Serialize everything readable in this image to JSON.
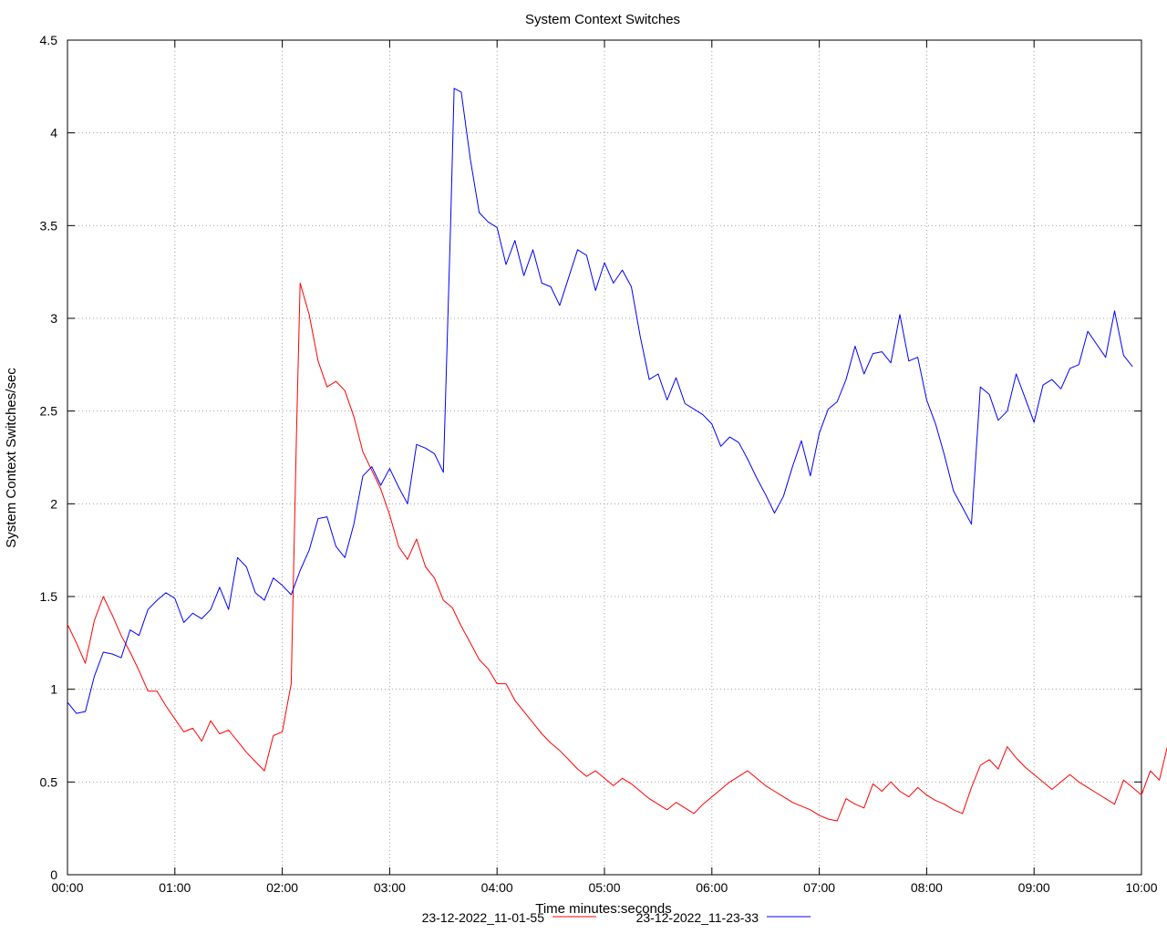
{
  "chart_data": {
    "type": "line",
    "title": "System Context Switches",
    "xlabel": "Time minutes:seconds",
    "ylabel": "System Context Switches/sec",
    "xlim": [
      0,
      600
    ],
    "ylim": [
      0,
      4.5
    ],
    "x_ticks": [
      "00:00",
      "01:00",
      "02:00",
      "03:00",
      "04:00",
      "05:00",
      "06:00",
      "07:00",
      "08:00",
      "09:00",
      "10:00"
    ],
    "y_ticks": [
      "0",
      "0.5",
      "1",
      "1.5",
      "2",
      "2.5",
      "3",
      "3.5",
      "4",
      "4.5"
    ],
    "grid": true,
    "legend_position": "bottom",
    "series": [
      {
        "name": "23-12-2022_11-01-55",
        "color": "#ff0000",
        "points": [
          [
            0,
            1.35
          ],
          [
            5,
            1.25
          ],
          [
            10,
            1.14
          ],
          [
            15,
            1.37
          ],
          [
            20,
            1.5
          ],
          [
            25,
            1.4
          ],
          [
            30,
            1.29
          ],
          [
            35,
            1.2
          ],
          [
            40,
            1.1
          ],
          [
            45,
            0.99
          ],
          [
            50,
            0.99
          ],
          [
            55,
            0.91
          ],
          [
            60,
            0.84
          ],
          [
            65,
            0.77
          ],
          [
            70,
            0.79
          ],
          [
            75,
            0.72
          ],
          [
            80,
            0.83
          ],
          [
            85,
            0.76
          ],
          [
            90,
            0.78
          ],
          [
            95,
            0.72
          ],
          [
            100,
            0.66
          ],
          [
            105,
            0.61
          ],
          [
            110,
            0.56
          ],
          [
            115,
            0.75
          ],
          [
            120,
            0.77
          ],
          [
            125,
            1.03
          ],
          [
            128,
            2.4
          ],
          [
            130,
            3.19
          ],
          [
            135,
            3.02
          ],
          [
            140,
            2.77
          ],
          [
            145,
            2.63
          ],
          [
            150,
            2.66
          ],
          [
            155,
            2.61
          ],
          [
            160,
            2.47
          ],
          [
            165,
            2.28
          ],
          [
            170,
            2.18
          ],
          [
            175,
            2.08
          ],
          [
            180,
            1.94
          ],
          [
            185,
            1.77
          ],
          [
            190,
            1.7
          ],
          [
            195,
            1.81
          ],
          [
            200,
            1.66
          ],
          [
            205,
            1.6
          ],
          [
            210,
            1.48
          ],
          [
            215,
            1.44
          ],
          [
            220,
            1.34
          ],
          [
            225,
            1.25
          ],
          [
            230,
            1.16
          ],
          [
            235,
            1.11
          ],
          [
            240,
            1.03
          ],
          [
            245,
            1.03
          ],
          [
            250,
            0.94
          ],
          [
            255,
            0.88
          ],
          [
            260,
            0.82
          ],
          [
            265,
            0.76
          ],
          [
            270,
            0.71
          ],
          [
            275,
            0.67
          ],
          [
            280,
            0.62
          ],
          [
            285,
            0.57
          ],
          [
            290,
            0.53
          ],
          [
            295,
            0.56
          ],
          [
            300,
            0.52
          ],
          [
            305,
            0.48
          ],
          [
            310,
            0.52
          ],
          [
            315,
            0.49
          ],
          [
            320,
            0.45
          ],
          [
            325,
            0.41
          ],
          [
            330,
            0.38
          ],
          [
            335,
            0.35
          ],
          [
            340,
            0.39
          ],
          [
            345,
            0.36
          ],
          [
            350,
            0.33
          ],
          [
            355,
            0.38
          ],
          [
            360,
            0.42
          ],
          [
            365,
            0.46
          ],
          [
            370,
            0.5
          ],
          [
            375,
            0.53
          ],
          [
            380,
            0.56
          ],
          [
            385,
            0.52
          ],
          [
            390,
            0.48
          ],
          [
            395,
            0.45
          ],
          [
            400,
            0.42
          ],
          [
            405,
            0.39
          ],
          [
            410,
            0.37
          ],
          [
            415,
            0.35
          ],
          [
            420,
            0.32
          ],
          [
            425,
            0.3
          ],
          [
            430,
            0.29
          ],
          [
            435,
            0.41
          ],
          [
            440,
            0.38
          ],
          [
            445,
            0.36
          ],
          [
            450,
            0.49
          ],
          [
            455,
            0.45
          ],
          [
            460,
            0.5
          ],
          [
            465,
            0.45
          ],
          [
            470,
            0.42
          ],
          [
            475,
            0.47
          ],
          [
            480,
            0.43
          ],
          [
            485,
            0.4
          ],
          [
            490,
            0.38
          ],
          [
            495,
            0.35
          ],
          [
            500,
            0.33
          ],
          [
            505,
            0.47
          ],
          [
            510,
            0.59
          ],
          [
            515,
            0.62
          ],
          [
            520,
            0.57
          ],
          [
            525,
            0.69
          ],
          [
            530,
            0.63
          ],
          [
            535,
            0.58
          ],
          [
            540,
            0.54
          ],
          [
            545,
            0.5
          ],
          [
            550,
            0.46
          ],
          [
            555,
            0.5
          ],
          [
            560,
            0.54
          ],
          [
            565,
            0.5
          ],
          [
            570,
            0.47
          ],
          [
            575,
            0.44
          ],
          [
            580,
            0.41
          ],
          [
            585,
            0.38
          ],
          [
            590,
            0.51
          ],
          [
            595,
            0.47
          ],
          [
            600,
            0.43
          ],
          [
            605,
            0.56
          ],
          [
            610,
            0.51
          ],
          [
            615,
            0.71
          ],
          [
            620,
            0.67
          ],
          [
            625,
            0.62
          ],
          [
            628,
            0.59
          ]
        ]
      },
      {
        "name": "23-12-2022_11-23-33",
        "color": "#0000ff",
        "points": [
          [
            0,
            0.93
          ],
          [
            5,
            0.87
          ],
          [
            10,
            0.88
          ],
          [
            15,
            1.07
          ],
          [
            20,
            1.2
          ],
          [
            25,
            1.19
          ],
          [
            30,
            1.17
          ],
          [
            35,
            1.32
          ],
          [
            40,
            1.29
          ],
          [
            45,
            1.43
          ],
          [
            50,
            1.48
          ],
          [
            55,
            1.52
          ],
          [
            60,
            1.49
          ],
          [
            65,
            1.36
          ],
          [
            70,
            1.41
          ],
          [
            75,
            1.38
          ],
          [
            80,
            1.43
          ],
          [
            85,
            1.55
          ],
          [
            90,
            1.43
          ],
          [
            95,
            1.71
          ],
          [
            100,
            1.66
          ],
          [
            105,
            1.52
          ],
          [
            110,
            1.48
          ],
          [
            115,
            1.6
          ],
          [
            120,
            1.56
          ],
          [
            125,
            1.51
          ],
          [
            130,
            1.64
          ],
          [
            135,
            1.75
          ],
          [
            140,
            1.92
          ],
          [
            145,
            1.93
          ],
          [
            150,
            1.77
          ],
          [
            155,
            1.71
          ],
          [
            160,
            1.89
          ],
          [
            165,
            2.15
          ],
          [
            170,
            2.2
          ],
          [
            175,
            2.1
          ],
          [
            180,
            2.19
          ],
          [
            185,
            2.09
          ],
          [
            190,
            2.0
          ],
          [
            195,
            2.32
          ],
          [
            200,
            2.3
          ],
          [
            205,
            2.27
          ],
          [
            210,
            2.17
          ],
          [
            214,
            3.5
          ],
          [
            216,
            4.24
          ],
          [
            220,
            4.22
          ],
          [
            225,
            3.86
          ],
          [
            230,
            3.57
          ],
          [
            235,
            3.52
          ],
          [
            240,
            3.49
          ],
          [
            245,
            3.29
          ],
          [
            250,
            3.42
          ],
          [
            255,
            3.23
          ],
          [
            260,
            3.37
          ],
          [
            265,
            3.19
          ],
          [
            270,
            3.17
          ],
          [
            275,
            3.07
          ],
          [
            280,
            3.22
          ],
          [
            285,
            3.37
          ],
          [
            290,
            3.34
          ],
          [
            295,
            3.15
          ],
          [
            300,
            3.3
          ],
          [
            305,
            3.19
          ],
          [
            310,
            3.26
          ],
          [
            315,
            3.17
          ],
          [
            320,
            2.9
          ],
          [
            325,
            2.67
          ],
          [
            330,
            2.7
          ],
          [
            335,
            2.56
          ],
          [
            340,
            2.68
          ],
          [
            345,
            2.54
          ],
          [
            350,
            2.51
          ],
          [
            355,
            2.48
          ],
          [
            360,
            2.43
          ],
          [
            365,
            2.31
          ],
          [
            370,
            2.36
          ],
          [
            375,
            2.33
          ],
          [
            380,
            2.24
          ],
          [
            385,
            2.14
          ],
          [
            390,
            2.05
          ],
          [
            395,
            1.95
          ],
          [
            400,
            2.04
          ],
          [
            405,
            2.2
          ],
          [
            410,
            2.34
          ],
          [
            415,
            2.15
          ],
          [
            420,
            2.38
          ],
          [
            425,
            2.51
          ],
          [
            430,
            2.55
          ],
          [
            435,
            2.67
          ],
          [
            440,
            2.85
          ],
          [
            445,
            2.7
          ],
          [
            450,
            2.81
          ],
          [
            455,
            2.82
          ],
          [
            460,
            2.76
          ],
          [
            465,
            3.02
          ],
          [
            470,
            2.77
          ],
          [
            475,
            2.79
          ],
          [
            480,
            2.56
          ],
          [
            485,
            2.43
          ],
          [
            490,
            2.26
          ],
          [
            495,
            2.07
          ],
          [
            500,
            1.98
          ],
          [
            505,
            1.89
          ],
          [
            510,
            2.63
          ],
          [
            515,
            2.59
          ],
          [
            520,
            2.45
          ],
          [
            525,
            2.5
          ],
          [
            530,
            2.7
          ],
          [
            535,
            2.57
          ],
          [
            540,
            2.44
          ],
          [
            545,
            2.64
          ],
          [
            550,
            2.67
          ],
          [
            555,
            2.62
          ],
          [
            560,
            2.73
          ],
          [
            565,
            2.75
          ],
          [
            570,
            2.93
          ],
          [
            575,
            2.86
          ],
          [
            580,
            2.79
          ],
          [
            585,
            3.04
          ],
          [
            590,
            2.8
          ],
          [
            595,
            2.74
          ]
        ]
      }
    ]
  }
}
